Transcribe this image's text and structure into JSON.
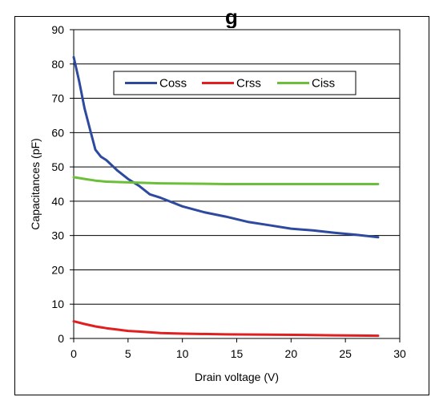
{
  "chart_data": {
    "type": "line",
    "title": "g",
    "xlabel": "Drain voltage (V)",
    "ylabel": "Capacitances (pF)",
    "xlim": [
      0,
      30
    ],
    "ylim": [
      0,
      90
    ],
    "x_ticks": [
      0,
      5,
      10,
      15,
      20,
      25,
      30
    ],
    "y_ticks": [
      0,
      10,
      20,
      30,
      40,
      50,
      60,
      70,
      80,
      90
    ],
    "grid": "horizontal",
    "legend_position": "top-center",
    "series": [
      {
        "name": "Coss",
        "color": "#2e4a9e",
        "x": [
          0,
          0.5,
          1,
          1.5,
          2,
          2.5,
          3,
          4,
          5,
          6,
          7,
          8,
          10,
          12,
          14,
          16,
          18,
          20,
          22,
          24,
          26,
          28
        ],
        "y": [
          82,
          75,
          67,
          61,
          55,
          53,
          52,
          49,
          46.5,
          44.5,
          42,
          41,
          38.5,
          36.8,
          35.5,
          34,
          33,
          32,
          31.5,
          30.8,
          30.2,
          29.5
        ]
      },
      {
        "name": "Crss",
        "color": "#e02020",
        "x": [
          0,
          1,
          2,
          3,
          4,
          5,
          6,
          8,
          10,
          14,
          18,
          22,
          24,
          28
        ],
        "y": [
          5,
          4.2,
          3.5,
          3,
          2.6,
          2.2,
          2,
          1.6,
          1.4,
          1.2,
          1.1,
          1.0,
          0.9,
          0.8
        ]
      },
      {
        "name": "Ciss",
        "color": "#6bbf3a",
        "x": [
          0,
          1,
          2,
          3,
          5,
          8,
          12,
          14,
          20,
          28
        ],
        "y": [
          47,
          46.5,
          46,
          45.7,
          45.5,
          45.2,
          45.1,
          45,
          45,
          45
        ]
      }
    ]
  }
}
